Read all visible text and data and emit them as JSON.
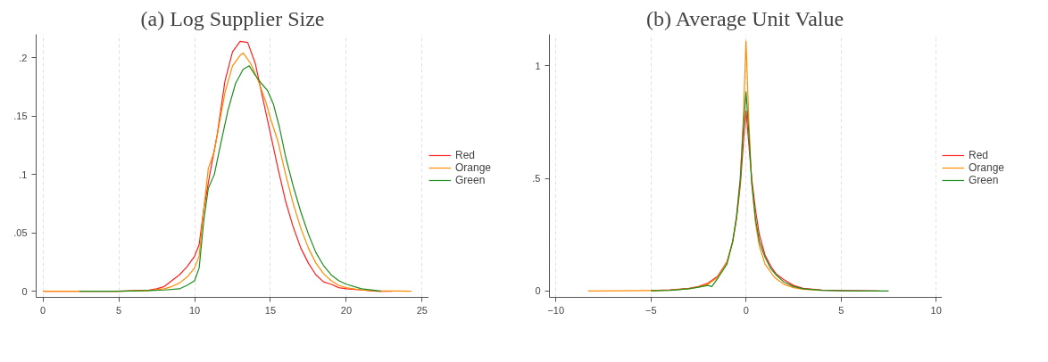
{
  "chart_data": [
    {
      "type": "line",
      "title": "(a) Log Supplier Size",
      "xlim": [
        -0.45,
        25.45
      ],
      "ylim": [
        -0.0053,
        0.22
      ],
      "xticks": [
        0,
        5,
        10,
        15,
        20,
        25
      ],
      "yticks": [
        {
          "value": 0,
          "label": "0"
        },
        {
          "value": 0.05,
          "label": ".05"
        },
        {
          "value": 0.1,
          "label": ".1"
        },
        {
          "value": 0.15,
          "label": ".15"
        },
        {
          "value": 0.2,
          "label": ".2"
        }
      ],
      "grid": "x",
      "legend": "right",
      "series": [
        {
          "name": "Red",
          "color": "#ff1f1f",
          "x": [
            0,
            5,
            7,
            7.5,
            8,
            8.5,
            9,
            9.5,
            10,
            10.3,
            10.6,
            11,
            11.5,
            12,
            12.5,
            13,
            13.5,
            14,
            14.5,
            15,
            15.5,
            16,
            16.5,
            17,
            17.5,
            18,
            18.5,
            19,
            19.5,
            20,
            21,
            22,
            23
          ],
          "values": [
            0,
            0,
            0.001,
            0.002,
            0.004,
            0.009,
            0.014,
            0.021,
            0.03,
            0.04,
            0.07,
            0.1,
            0.135,
            0.18,
            0.205,
            0.214,
            0.213,
            0.195,
            0.165,
            0.135,
            0.105,
            0.077,
            0.055,
            0.037,
            0.024,
            0.014,
            0.008,
            0.006,
            0.003,
            0.002,
            0.001,
            0,
            0
          ]
        },
        {
          "name": "Orange",
          "color": "#ff8c00",
          "x": [
            0,
            5,
            7,
            8,
            8.5,
            9,
            9.5,
            10,
            10.3,
            10.6,
            10.9,
            11.3,
            12,
            12.5,
            13,
            13.2,
            13.7,
            14.2,
            14.7,
            15,
            15.5,
            16,
            16.5,
            17,
            17.5,
            18,
            18.5,
            19,
            19.5,
            20,
            21,
            22,
            24.3
          ],
          "values": [
            0,
            0,
            0.0005,
            0.002,
            0.004,
            0.007,
            0.012,
            0.02,
            0.03,
            0.07,
            0.105,
            0.12,
            0.17,
            0.193,
            0.202,
            0.204,
            0.195,
            0.18,
            0.162,
            0.148,
            0.128,
            0.1,
            0.075,
            0.054,
            0.037,
            0.024,
            0.015,
            0.009,
            0.005,
            0.003,
            0.001,
            0.0003,
            0
          ]
        },
        {
          "name": "Green",
          "color": "#1e8c1e",
          "x": [
            2.4,
            5,
            7,
            8,
            9,
            9.5,
            10,
            10.3,
            10.6,
            10.9,
            11.3,
            11.7,
            12.2,
            12.7,
            13.2,
            13.6,
            14,
            14.4,
            14.8,
            15.2,
            15.6,
            16,
            16.5,
            17,
            17.5,
            18,
            18.5,
            19,
            19.5,
            20,
            21,
            22,
            22.3
          ],
          "values": [
            0,
            0,
            0.0005,
            0.001,
            0.002,
            0.005,
            0.009,
            0.02,
            0.06,
            0.088,
            0.1,
            0.125,
            0.155,
            0.178,
            0.19,
            0.193,
            0.185,
            0.178,
            0.172,
            0.16,
            0.14,
            0.115,
            0.09,
            0.068,
            0.049,
            0.033,
            0.022,
            0.014,
            0.009,
            0.006,
            0.002,
            0.0005,
            0
          ]
        }
      ]
    },
    {
      "type": "line",
      "title": "(b) Average Unit Value",
      "xlim": [
        -10.34,
        10.32
      ],
      "ylim": [
        -0.028,
        1.14
      ],
      "xticks": [
        -10,
        -5,
        0,
        5,
        10
      ],
      "yticks": [
        {
          "value": 0,
          "label": "0"
        },
        {
          "value": 0.5,
          "label": ".5"
        },
        {
          "value": 1,
          "label": "1"
        }
      ],
      "grid": "x",
      "legend": "right",
      "series": [
        {
          "name": "Red",
          "color": "#ff1f1f",
          "x": [
            -5,
            -4,
            -3,
            -2.5,
            -2,
            -1.5,
            -1,
            -0.7,
            -0.5,
            -0.3,
            -0.1,
            0,
            0.1,
            0.3,
            0.5,
            0.7,
            1,
            1.3,
            1.6,
            2,
            2.5,
            3,
            4,
            5,
            7
          ],
          "values": [
            0.002,
            0.005,
            0.012,
            0.02,
            0.035,
            0.065,
            0.13,
            0.22,
            0.32,
            0.47,
            0.7,
            0.8,
            0.7,
            0.5,
            0.36,
            0.25,
            0.16,
            0.11,
            0.075,
            0.05,
            0.025,
            0.012,
            0.004,
            0.002,
            0
          ]
        },
        {
          "name": "Orange",
          "color": "#ff8c00",
          "x": [
            -8.3,
            -5,
            -4,
            -3,
            -2.5,
            -2,
            -1.5,
            -1,
            -0.7,
            -0.5,
            -0.3,
            -0.15,
            0,
            0.15,
            0.3,
            0.5,
            0.7,
            1,
            1.5,
            2,
            2.5,
            3,
            4
          ],
          "values": [
            0,
            0.002,
            0.004,
            0.01,
            0.018,
            0.03,
            0.06,
            0.13,
            0.22,
            0.33,
            0.5,
            0.75,
            1.11,
            0.75,
            0.48,
            0.3,
            0.2,
            0.12,
            0.06,
            0.03,
            0.015,
            0.008,
            0.003
          ]
        },
        {
          "name": "Green",
          "color": "#1e8c1e",
          "x": [
            -5,
            -4,
            -3,
            -2.5,
            -2,
            -1.8,
            -1.5,
            -1,
            -0.7,
            -0.5,
            -0.3,
            -0.15,
            0,
            0.15,
            0.3,
            0.5,
            0.7,
            1,
            1.3,
            1.6,
            2,
            2.5,
            3,
            4,
            5,
            7.5
          ],
          "values": [
            0.001,
            0.003,
            0.01,
            0.017,
            0.025,
            0.02,
            0.055,
            0.12,
            0.22,
            0.33,
            0.5,
            0.72,
            0.885,
            0.7,
            0.48,
            0.32,
            0.22,
            0.15,
            0.1,
            0.07,
            0.04,
            0.02,
            0.01,
            0.003,
            0.001,
            0
          ]
        }
      ]
    }
  ]
}
